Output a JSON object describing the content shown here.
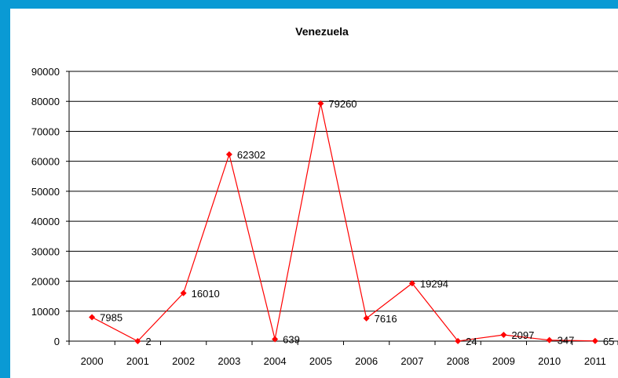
{
  "chart_data": {
    "type": "line",
    "title": "Venezuela",
    "xlabel": "",
    "ylabel": "",
    "categories": [
      "2000",
      "2001",
      "2002",
      "2003",
      "2004",
      "2005",
      "2006",
      "2007",
      "2008",
      "2009",
      "2010",
      "2011"
    ],
    "series": [
      {
        "values": [
          7985,
          2,
          16010,
          62302,
          639,
          79260,
          7616,
          19294,
          24,
          2097,
          347,
          65
        ]
      }
    ],
    "data_labels": [
      "7985",
      "2",
      "16010",
      "62302",
      "639",
      "79260",
      "7616",
      "19294",
      "24",
      "2097",
      "347",
      "65"
    ],
    "ylim": [
      0,
      90000
    ],
    "yticks": [
      0,
      10000,
      20000,
      30000,
      40000,
      50000,
      60000,
      70000,
      80000,
      90000
    ],
    "ytick_labels": [
      "0",
      "10000",
      "20000",
      "30000",
      "40000",
      "50000",
      "60000",
      "70000",
      "80000",
      "90000"
    ],
    "grid": true,
    "legend": "none",
    "colors": {
      "series": "#ff0000",
      "grid": "#000000",
      "background": "#ffffff",
      "frame": "#0a9ad4"
    }
  }
}
